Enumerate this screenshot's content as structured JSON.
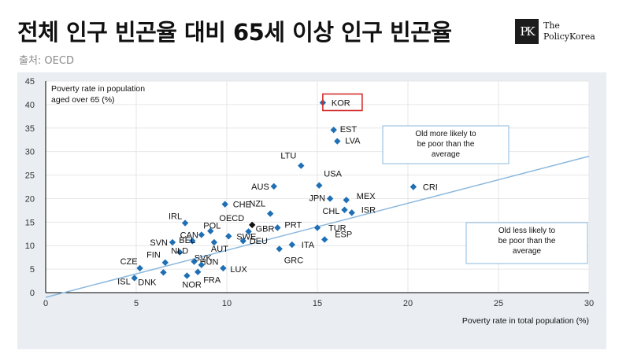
{
  "headline": "전체 인구 빈곤율 대비 65세 이상 인구 빈곤율",
  "source": "출처: OECD",
  "logo": {
    "mark": "PK",
    "line1": "The",
    "line2": "PolicyKorea"
  },
  "chart_data": {
    "type": "scatter",
    "title": "",
    "xlabel": "Poverty rate in total population (%)",
    "ylabel_lines": [
      "Poverty rate in population",
      "aged over 65 (%)"
    ],
    "xlim": [
      0,
      30
    ],
    "ylim": [
      0,
      45
    ],
    "xticks": [
      0,
      5,
      10,
      15,
      20,
      25,
      30
    ],
    "yticks": [
      0,
      5,
      10,
      15,
      20,
      25,
      30,
      35,
      40,
      45
    ],
    "grid": true,
    "marker_color": "#1f6fb5",
    "highlight_color": "#d62d2d",
    "trend_color": "#8bb8dd",
    "trend_line": {
      "x": [
        0,
        30
      ],
      "y": [
        -1.0,
        29.0
      ]
    },
    "annotations": [
      {
        "id": "upper",
        "lines": [
          "Old more likely to",
          "be poor than the",
          "average"
        ]
      },
      {
        "id": "lower",
        "lines": [
          "Old less likely to",
          "be poor than the",
          "average"
        ]
      }
    ],
    "points": [
      {
        "label": "KOR",
        "x": 15.3,
        "y": 40.4,
        "highlight": true
      },
      {
        "label": "EST",
        "x": 15.9,
        "y": 34.6
      },
      {
        "label": "LVA",
        "x": 16.1,
        "y": 32.2
      },
      {
        "label": "LTU",
        "x": 14.1,
        "y": 27.0
      },
      {
        "label": "USA",
        "x": 15.1,
        "y": 22.8
      },
      {
        "label": "AUS",
        "x": 12.6,
        "y": 22.6
      },
      {
        "label": "CRI",
        "x": 20.3,
        "y": 22.5
      },
      {
        "label": "MEX",
        "x": 16.6,
        "y": 19.7
      },
      {
        "label": "JPN",
        "x": 15.7,
        "y": 20.0
      },
      {
        "label": "CHL",
        "x": 16.5,
        "y": 17.6
      },
      {
        "label": "ISR",
        "x": 16.9,
        "y": 17.0
      },
      {
        "label": "CHE",
        "x": 9.9,
        "y": 18.8
      },
      {
        "label": "NZL",
        "x": 12.4,
        "y": 16.8
      },
      {
        "label": "OECD",
        "x": 11.4,
        "y": 14.4,
        "special": true
      },
      {
        "label": "IRL",
        "x": 7.7,
        "y": 14.8
      },
      {
        "label": "POL",
        "x": 9.1,
        "y": 13.1
      },
      {
        "label": "CAN",
        "x": 8.6,
        "y": 12.3
      },
      {
        "label": "SWE",
        "x": 10.1,
        "y": 12.0
      },
      {
        "label": "PRT",
        "x": 12.8,
        "y": 13.8
      },
      {
        "label": "GBR",
        "x": 11.2,
        "y": 13.0
      },
      {
        "label": "TUR",
        "x": 15.0,
        "y": 13.8
      },
      {
        "label": "ESP",
        "x": 15.4,
        "y": 11.3
      },
      {
        "label": "SVN",
        "x": 7.0,
        "y": 10.7
      },
      {
        "label": "BEL",
        "x": 8.1,
        "y": 11.0
      },
      {
        "label": "AUT",
        "x": 9.3,
        "y": 10.7
      },
      {
        "label": "DEU",
        "x": 10.9,
        "y": 11.0
      },
      {
        "label": "ITA",
        "x": 13.6,
        "y": 10.2
      },
      {
        "label": "GRC",
        "x": 12.9,
        "y": 9.3
      },
      {
        "label": "NLD",
        "x": 7.4,
        "y": 8.6
      },
      {
        "label": "FIN",
        "x": 6.6,
        "y": 6.4
      },
      {
        "label": "HUN",
        "x": 8.2,
        "y": 6.6
      },
      {
        "label": "CZE",
        "x": 5.2,
        "y": 5.2
      },
      {
        "label": "SVK",
        "x": 8.6,
        "y": 5.9
      },
      {
        "label": "LUX",
        "x": 9.8,
        "y": 5.2
      },
      {
        "label": "DNK",
        "x": 6.5,
        "y": 4.3
      },
      {
        "label": "FRA",
        "x": 8.4,
        "y": 4.4
      },
      {
        "label": "ISL",
        "x": 4.9,
        "y": 3.1
      },
      {
        "label": "NOR",
        "x": 7.8,
        "y": 3.6
      }
    ]
  }
}
